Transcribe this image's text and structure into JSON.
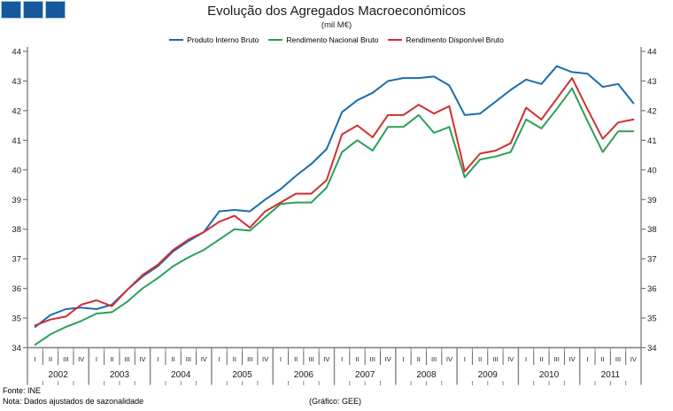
{
  "header": {
    "title": "Evolução dos Agregados Macroeconómicos",
    "subtitle": "(mil M€)"
  },
  "footer": {
    "fonte": "Fonte: INE",
    "nota": "Nota: Dados ajustados de sazonalidade",
    "grafico": "(Gráfico: GEE)"
  },
  "chart_data": {
    "type": "line",
    "title": "Evolução dos Agregados Macroeconómicos",
    "subtitle": "(mil M€)",
    "grid": false,
    "legend_position": "top",
    "ylim": [
      34,
      44
    ],
    "y_ticks": [
      34,
      35,
      36,
      37,
      38,
      39,
      40,
      41,
      42,
      43,
      44
    ],
    "years": [
      "2002",
      "2003",
      "2004",
      "2005",
      "2006",
      "2007",
      "2008",
      "2009",
      "2010",
      "2011"
    ],
    "quarter_labels": [
      "I",
      "II",
      "III",
      "IV"
    ],
    "axis_color": "#8A8A8A",
    "series": [
      {
        "name": "Produto Interno Bruto",
        "color": "#1B6DAE",
        "values": [
          34.7,
          35.1,
          35.3,
          35.35,
          35.3,
          35.45,
          35.95,
          36.4,
          36.75,
          37.25,
          37.6,
          37.9,
          38.6,
          38.65,
          38.6,
          39.0,
          39.35,
          39.8,
          40.2,
          40.7,
          41.95,
          42.35,
          42.6,
          43.0,
          43.1,
          43.1,
          43.15,
          42.85,
          41.85,
          41.9,
          42.3,
          42.7,
          43.05,
          42.9,
          43.5,
          43.3,
          43.25,
          42.8,
          42.9,
          42.25
        ]
      },
      {
        "name": "Rendimento Nacional Bruto",
        "color": "#2AA05A",
        "values": [
          34.1,
          34.45,
          34.7,
          34.9,
          35.15,
          35.2,
          35.55,
          36.0,
          36.35,
          36.75,
          37.05,
          37.3,
          37.65,
          38.0,
          37.95,
          38.4,
          38.85,
          38.9,
          38.9,
          39.4,
          40.6,
          41.0,
          40.65,
          41.45,
          41.45,
          41.85,
          41.25,
          41.45,
          39.75,
          40.35,
          40.45,
          40.6,
          41.7,
          41.4,
          42.05,
          42.75,
          41.65,
          40.6,
          41.3,
          41.3
        ]
      },
      {
        "name": "Rendimento Disponível Bruto",
        "color": "#D22F2F",
        "values": [
          34.75,
          34.95,
          35.05,
          35.45,
          35.6,
          35.4,
          35.95,
          36.45,
          36.8,
          37.3,
          37.65,
          37.9,
          38.25,
          38.45,
          38.05,
          38.6,
          38.9,
          39.2,
          39.2,
          39.65,
          41.2,
          41.5,
          41.1,
          41.85,
          41.85,
          42.2,
          41.9,
          42.15,
          39.95,
          40.55,
          40.65,
          40.9,
          42.1,
          41.7,
          42.4,
          43.1,
          42.05,
          41.05,
          41.6,
          41.7
        ]
      }
    ]
  }
}
